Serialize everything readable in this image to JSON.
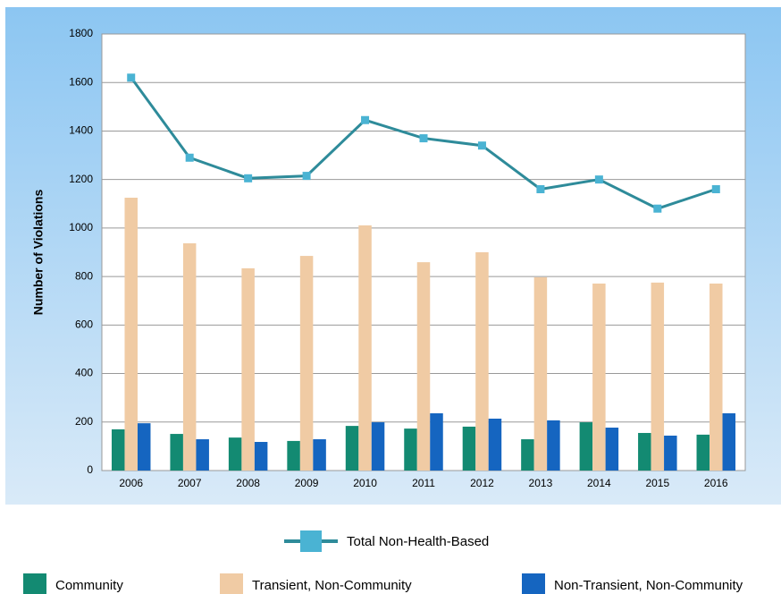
{
  "chart_data": {
    "type": "bar_line",
    "y_label": "Number of Violations",
    "categories": [
      "2006",
      "2007",
      "2008",
      "2009",
      "2010",
      "2011",
      "2012",
      "2013",
      "2014",
      "2015",
      "2016"
    ],
    "series": [
      {
        "name": "Community",
        "type": "bar",
        "color": "#138a72",
        "values": [
          170,
          151,
          136,
          122,
          184,
          173,
          181,
          129,
          199,
          155,
          148
        ]
      },
      {
        "name": "Transient, Non-Community",
        "type": "bar",
        "color": "#f0cba4",
        "values": [
          1125,
          937,
          834,
          885,
          1011,
          859,
          900,
          797,
          771,
          775,
          771
        ]
      },
      {
        "name": "Non-Transient, Non-Community",
        "type": "bar",
        "color": "#1565c0",
        "values": [
          195,
          129,
          118,
          129,
          199,
          236,
          214,
          207,
          177,
          144,
          236
        ]
      },
      {
        "name": "Total Non-Health-Based",
        "type": "line",
        "color": "#2e8b9a",
        "marker_color": "#4ab3d3",
        "values": [
          1620,
          1290,
          1205,
          1215,
          1445,
          1370,
          1340,
          1160,
          1200,
          1080,
          1160
        ]
      }
    ],
    "ylim": [
      0,
      1800
    ],
    "yticks": [
      0,
      200,
      400,
      600,
      800,
      1000,
      1200,
      1400,
      1600,
      1800
    ],
    "grid": true
  }
}
